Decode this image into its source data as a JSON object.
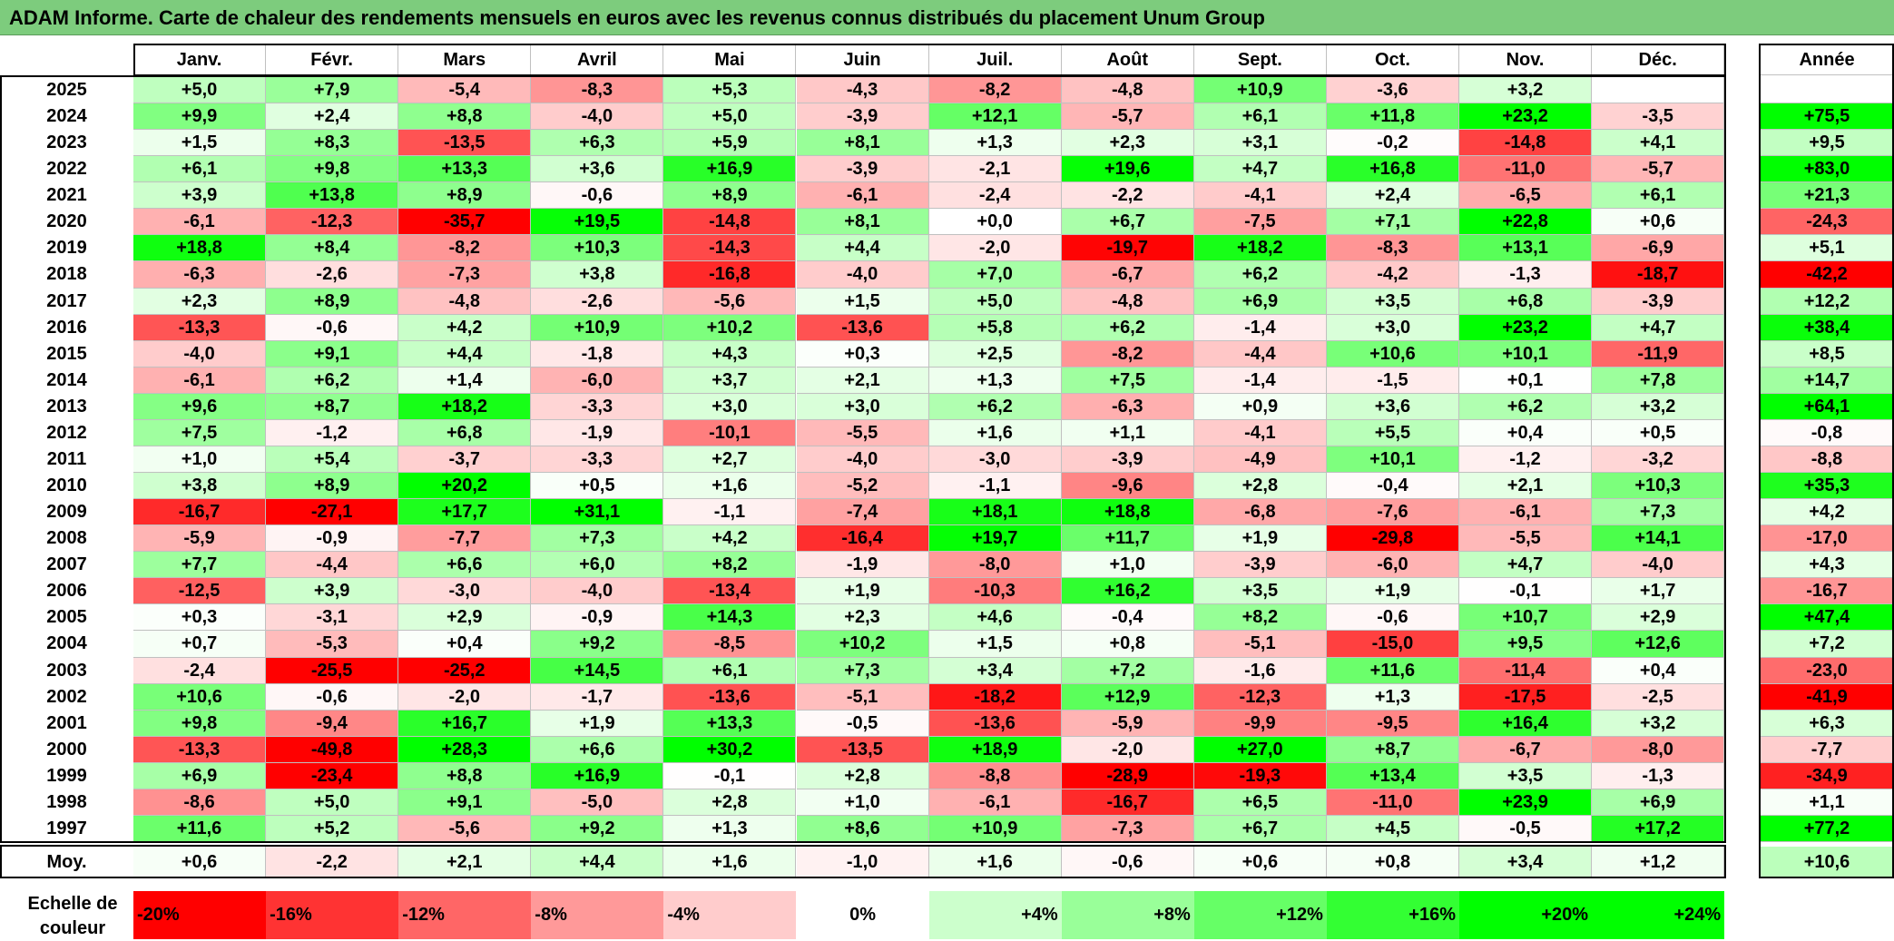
{
  "title": "ADAM Informe. Carte de chaleur des rendements mensuels en euros avec les revenus connus distribués du placement Unum Group",
  "chart_data": {
    "type": "heatmap",
    "columns": [
      "Janv.",
      "Févr.",
      "Mars",
      "Avril",
      "Mai",
      "Juin",
      "Juil.",
      "Août",
      "Sept.",
      "Oct.",
      "Nov.",
      "Déc."
    ],
    "year_header": "Année",
    "rows": [
      {
        "year": "2025",
        "values": [
          "+5,0",
          "+7,9",
          "-5,4",
          "-8,3",
          "+5,3",
          "-4,3",
          "-8,2",
          "-4,8",
          "+10,9",
          "-3,6",
          "+3,2",
          ""
        ],
        "annual": ""
      },
      {
        "year": "2024",
        "values": [
          "+9,9",
          "+2,4",
          "+8,8",
          "-4,0",
          "+5,0",
          "-3,9",
          "+12,1",
          "-5,7",
          "+6,1",
          "+11,8",
          "+23,2",
          "-3,5"
        ],
        "annual": "+75,5"
      },
      {
        "year": "2023",
        "values": [
          "+1,5",
          "+8,3",
          "-13,5",
          "+6,3",
          "+5,9",
          "+8,1",
          "+1,3",
          "+2,3",
          "+3,1",
          "-0,2",
          "-14,8",
          "+4,1"
        ],
        "annual": "+9,5"
      },
      {
        "year": "2022",
        "values": [
          "+6,1",
          "+9,8",
          "+13,3",
          "+3,6",
          "+16,9",
          "-3,9",
          "-2,1",
          "+19,6",
          "+4,7",
          "+16,8",
          "-11,0",
          "-5,7"
        ],
        "annual": "+83,0"
      },
      {
        "year": "2021",
        "values": [
          "+3,9",
          "+13,8",
          "+8,9",
          "-0,6",
          "+8,9",
          "-6,1",
          "-2,4",
          "-2,2",
          "-4,1",
          "+2,4",
          "-6,5",
          "+6,1"
        ],
        "annual": "+21,3"
      },
      {
        "year": "2020",
        "values": [
          "-6,1",
          "-12,3",
          "-35,7",
          "+19,5",
          "-14,8",
          "+8,1",
          "+0,0",
          "+6,7",
          "-7,5",
          "+7,1",
          "+22,8",
          "+0,6"
        ],
        "annual": "-24,3"
      },
      {
        "year": "2019",
        "values": [
          "+18,8",
          "+8,4",
          "-8,2",
          "+10,3",
          "-14,3",
          "+4,4",
          "-2,0",
          "-19,7",
          "+18,2",
          "-8,3",
          "+13,1",
          "-6,9"
        ],
        "annual": "+5,1"
      },
      {
        "year": "2018",
        "values": [
          "-6,3",
          "-2,6",
          "-7,3",
          "+3,8",
          "-16,8",
          "-4,0",
          "+7,0",
          "-6,7",
          "+6,2",
          "-4,2",
          "-1,3",
          "-18,7"
        ],
        "annual": "-42,2"
      },
      {
        "year": "2017",
        "values": [
          "+2,3",
          "+8,9",
          "-4,8",
          "-2,6",
          "-5,6",
          "+1,5",
          "+5,0",
          "-4,8",
          "+6,9",
          "+3,5",
          "+6,8",
          "-3,9"
        ],
        "annual": "+12,2"
      },
      {
        "year": "2016",
        "values": [
          "-13,3",
          "-0,6",
          "+4,2",
          "+10,9",
          "+10,2",
          "-13,6",
          "+5,8",
          "+6,2",
          "-1,4",
          "+3,0",
          "+23,2",
          "+4,7"
        ],
        "annual": "+38,4"
      },
      {
        "year": "2015",
        "values": [
          "-4,0",
          "+9,1",
          "+4,4",
          "-1,8",
          "+4,3",
          "+0,3",
          "+2,5",
          "-8,2",
          "-4,4",
          "+10,6",
          "+10,1",
          "-11,9"
        ],
        "annual": "+8,5"
      },
      {
        "year": "2014",
        "values": [
          "-6,1",
          "+6,2",
          "+1,4",
          "-6,0",
          "+3,7",
          "+2,1",
          "+1,3",
          "+7,5",
          "-1,4",
          "-1,5",
          "+0,1",
          "+7,8"
        ],
        "annual": "+14,7"
      },
      {
        "year": "2013",
        "values": [
          "+9,6",
          "+8,7",
          "+18,2",
          "-3,3",
          "+3,0",
          "+3,0",
          "+6,2",
          "-6,3",
          "+0,9",
          "+3,6",
          "+6,2",
          "+3,2"
        ],
        "annual": "+64,1"
      },
      {
        "year": "2012",
        "values": [
          "+7,5",
          "-1,2",
          "+6,8",
          "-1,9",
          "-10,1",
          "-5,5",
          "+1,6",
          "+1,1",
          "-4,1",
          "+5,5",
          "+0,4",
          "+0,5"
        ],
        "annual": "-0,8"
      },
      {
        "year": "2011",
        "values": [
          "+1,0",
          "+5,4",
          "-3,7",
          "-3,3",
          "+2,7",
          "-4,0",
          "-3,0",
          "-3,9",
          "-4,9",
          "+10,1",
          "-1,2",
          "-3,2"
        ],
        "annual": "-8,8"
      },
      {
        "year": "2010",
        "values": [
          "+3,8",
          "+8,9",
          "+20,2",
          "+0,5",
          "+1,6",
          "-5,2",
          "-1,1",
          "-9,6",
          "+2,8",
          "-0,4",
          "+2,1",
          "+10,3"
        ],
        "annual": "+35,3"
      },
      {
        "year": "2009",
        "values": [
          "-16,7",
          "-27,1",
          "+17,7",
          "+31,1",
          "-1,1",
          "-7,4",
          "+18,1",
          "+18,8",
          "-6,8",
          "-7,6",
          "-6,1",
          "+7,3"
        ],
        "annual": "+4,2"
      },
      {
        "year": "2008",
        "values": [
          "-5,9",
          "-0,9",
          "-7,7",
          "+7,3",
          "+4,2",
          "-16,4",
          "+19,7",
          "+11,7",
          "+1,9",
          "-29,8",
          "-5,5",
          "+14,1"
        ],
        "annual": "-17,0"
      },
      {
        "year": "2007",
        "values": [
          "+7,7",
          "-4,4",
          "+6,6",
          "+6,0",
          "+8,2",
          "-1,9",
          "-8,0",
          "+1,0",
          "-3,9",
          "-6,0",
          "+4,7",
          "-4,0"
        ],
        "annual": "+4,3"
      },
      {
        "year": "2006",
        "values": [
          "-12,5",
          "+3,9",
          "-3,0",
          "-4,0",
          "-13,4",
          "+1,9",
          "-10,3",
          "+16,2",
          "+3,5",
          "+1,9",
          "-0,1",
          "+1,7"
        ],
        "annual": "-16,7"
      },
      {
        "year": "2005",
        "values": [
          "+0,3",
          "-3,1",
          "+2,9",
          "-0,9",
          "+14,3",
          "+2,3",
          "+4,6",
          "-0,4",
          "+8,2",
          "-0,6",
          "+10,7",
          "+2,9"
        ],
        "annual": "+47,4"
      },
      {
        "year": "2004",
        "values": [
          "+0,7",
          "-5,3",
          "+0,4",
          "+9,2",
          "-8,5",
          "+10,2",
          "+1,5",
          "+0,8",
          "-5,1",
          "-15,0",
          "+9,5",
          "+12,6"
        ],
        "annual": "+7,2"
      },
      {
        "year": "2003",
        "values": [
          "-2,4",
          "-25,5",
          "-25,2",
          "+14,5",
          "+6,1",
          "+7,3",
          "+3,4",
          "+7,2",
          "-1,6",
          "+11,6",
          "-11,4",
          "+0,4"
        ],
        "annual": "-23,0"
      },
      {
        "year": "2002",
        "values": [
          "+10,6",
          "-0,6",
          "-2,0",
          "-1,7",
          "-13,6",
          "-5,1",
          "-18,2",
          "+12,9",
          "-12,3",
          "+1,3",
          "-17,5",
          "-2,5"
        ],
        "annual": "-41,9"
      },
      {
        "year": "2001",
        "values": [
          "+9,8",
          "-9,4",
          "+16,7",
          "+1,9",
          "+13,3",
          "-0,5",
          "-13,6",
          "-5,9",
          "-9,9",
          "-9,5",
          "+16,4",
          "+3,2"
        ],
        "annual": "+6,3"
      },
      {
        "year": "2000",
        "values": [
          "-13,3",
          "-49,8",
          "+28,3",
          "+6,6",
          "+30,2",
          "-13,5",
          "+18,9",
          "-2,0",
          "+27,0",
          "+8,7",
          "-6,7",
          "-8,0"
        ],
        "annual": "-7,7"
      },
      {
        "year": "1999",
        "values": [
          "+6,9",
          "-23,4",
          "+8,8",
          "+16,9",
          "-0,1",
          "+2,8",
          "-8,8",
          "-28,9",
          "-19,3",
          "+13,4",
          "+3,5",
          "-1,3"
        ],
        "annual": "-34,9"
      },
      {
        "year": "1998",
        "values": [
          "-8,6",
          "+5,0",
          "+9,1",
          "-5,0",
          "+2,8",
          "+1,0",
          "-6,1",
          "-16,7",
          "+6,5",
          "-11,0",
          "+23,9",
          "+6,9"
        ],
        "annual": "+1,1"
      },
      {
        "year": "1997",
        "values": [
          "+11,6",
          "+5,2",
          "-5,6",
          "+9,2",
          "+1,3",
          "+8,6",
          "+10,9",
          "-7,3",
          "+6,7",
          "+4,5",
          "-0,5",
          "+17,2"
        ],
        "annual": "+77,2"
      }
    ],
    "average": {
      "label": "Moy.",
      "values": [
        "+0,6",
        "-2,2",
        "+2,1",
        "+4,4",
        "+1,6",
        "-1,0",
        "+1,6",
        "-0,6",
        "+0,6",
        "+0,8",
        "+3,4",
        "+1,2"
      ],
      "annual": "+10,6"
    },
    "scale": {
      "label": "Echelle de couleur",
      "items": [
        {
          "text": "-20%",
          "value": -20,
          "align": "left"
        },
        {
          "text": "-16%",
          "value": -16,
          "align": "left"
        },
        {
          "text": "-12%",
          "value": -12,
          "align": "left"
        },
        {
          "text": "-8%",
          "value": -8,
          "align": "left"
        },
        {
          "text": "-4%",
          "value": -4,
          "align": "left"
        },
        {
          "text": "0%",
          "value": 0,
          "align": "center"
        },
        {
          "text": "+4%",
          "value": 4,
          "align": "right"
        },
        {
          "text": "+8%",
          "value": 8,
          "align": "right"
        },
        {
          "text": "+12%",
          "value": 12,
          "align": "right"
        },
        {
          "text": "+16%",
          "value": 16,
          "align": "right"
        },
        {
          "text": "+20%",
          "value": 20,
          "align": "right"
        },
        {
          "text": "+24%",
          "value": 24,
          "align": "right"
        }
      ]
    },
    "colors": {
      "negative_max": "#ff0000",
      "neutral": "#ffffff",
      "positive_max": "#00ff00",
      "title_bg": "#7dcc7d"
    }
  }
}
